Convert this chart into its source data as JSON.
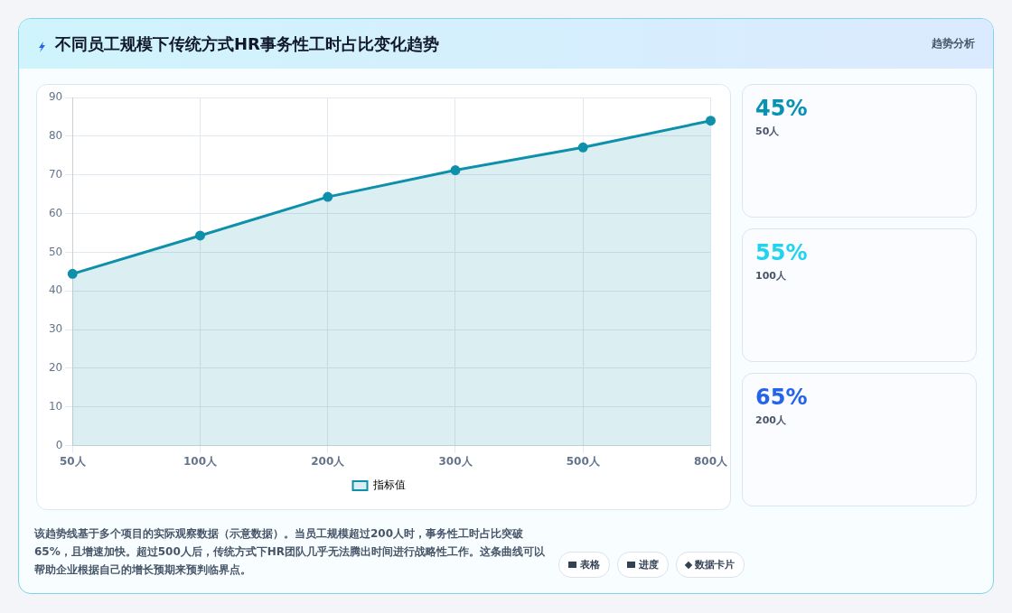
{
  "chart_data": [
    {
      "type": "area",
      "title": "不同员工规模下传统方式HR事务性工时占比变化趋势",
      "categories": [
        "50人",
        "100人",
        "200人",
        "300人",
        "500人",
        "800人"
      ],
      "series": [
        {
          "name": "指标值",
          "color": "#0e90aa",
          "values": [
            44.4,
            54.3,
            64.3,
            71.2,
            77.1,
            84
          ]
        }
      ],
      "ylim": [
        0,
        90
      ],
      "yticks": [
        0,
        10,
        20,
        30,
        40,
        50,
        60,
        70,
        80,
        90
      ],
      "grid": true,
      "legend": "bottom",
      "marker": "circle",
      "annotations": [
        "该趋势线基于多个项目的实际观察数据（示意数据）。当员工规模超过200人时，事务性工时占比突破65%，且增速加快。超过500人后，传统方式下HR团队几乎无法腾出时间进行战略性工作。这条曲线可以帮助企业根据自己的增长预期来预判临界点。",
        "表格",
        "进度",
        "数据卡片"
      ]
    },
    {
      "type": "other",
      "title": "趋势分析",
      "annotations": [
        "45%",
        "50人",
        "55%",
        "100人",
        "65%",
        "200人"
      ]
    }
  ]
}
